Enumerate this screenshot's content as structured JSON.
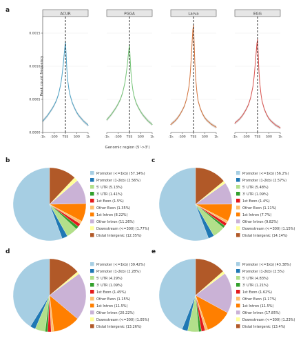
{
  "panel_labels": {
    "a": "a",
    "b": "b",
    "c": "c",
    "d": "d",
    "e": "e"
  },
  "colors": {
    "facet_lines": [
      "#4fa3c7",
      "#74c476",
      "#d4733a",
      "#d9534f"
    ],
    "facet_fill": "#bdbdbd",
    "strip_bg": "#e6e6e6",
    "pie": [
      "#a6cee3",
      "#1f78b4",
      "#b2df8a",
      "#33a02c",
      "#fb9a99",
      "#e31a1c",
      "#fdbf6f",
      "#ff7f00",
      "#cab2d6",
      "#6a3d9a",
      "#ffff99",
      "#b15928"
    ]
  },
  "chart_data": [
    {
      "type": "line",
      "panel": "a",
      "facets": [
        "ACUR",
        "PGGA",
        "Larva",
        "EGG"
      ],
      "xlabel": "Genomic region (5'->3')",
      "ylabel": "Peak count frequency",
      "xtick_labels": [
        "-1k",
        "-500",
        "TSS",
        "500",
        "1k"
      ],
      "ytick_labels": [
        "0.0000",
        "0.0005",
        "0.0010",
        "0.0015"
      ],
      "x_range": [
        -1000,
        1000
      ],
      "ylim": [
        0,
        0.00175
      ],
      "tss_line": 0,
      "x": [
        -1000,
        -900,
        -800,
        -700,
        -600,
        -500,
        -400,
        -300,
        -200,
        -150,
        -100,
        -60,
        -30,
        0,
        30,
        60,
        100,
        150,
        200,
        300,
        400,
        500,
        600,
        700,
        800,
        900,
        1000
      ],
      "series": [
        {
          "values": [
            0.00017,
            0.00021,
            0.00025,
            0.0003,
            0.00035,
            0.00041,
            0.00048,
            0.00058,
            0.00074,
            0.00086,
            0.00101,
            0.00116,
            0.00127,
            0.00137,
            0.00119,
            0.00097,
            0.00079,
            0.00066,
            0.00057,
            0.00045,
            0.00037,
            0.0003,
            0.00025,
            0.00021,
            0.00017,
            0.00014,
            0.00011
          ]
        },
        {
          "values": [
            0.00019,
            0.00023,
            0.00027,
            0.00032,
            0.00037,
            0.00043,
            0.0005,
            0.0006,
            0.00075,
            0.00087,
            0.001,
            0.00114,
            0.00124,
            0.00133,
            0.00113,
            0.00093,
            0.00077,
            0.00064,
            0.00055,
            0.00044,
            0.00037,
            0.00031,
            0.00026,
            0.00022,
            0.00018,
            0.00015,
            0.00012
          ]
        },
        {
          "values": [
            0.00012,
            0.00015,
            0.00018,
            0.00022,
            0.00027,
            0.00033,
            0.0004,
            0.00051,
            0.00069,
            0.00086,
            0.00112,
            0.00137,
            0.00155,
            0.00162,
            0.00134,
            0.00104,
            0.0008,
            0.00061,
            0.00048,
            0.00036,
            0.00028,
            0.00022,
            0.00018,
            0.00015,
            0.00012,
            0.0001,
            8e-05
          ]
        },
        {
          "values": [
            0.00014,
            0.00017,
            0.0002,
            0.00024,
            0.00029,
            0.00035,
            0.00042,
            0.00053,
            0.0007,
            0.00085,
            0.00104,
            0.00121,
            0.00134,
            0.00141,
            0.00118,
            0.00093,
            0.00074,
            0.00058,
            0.00047,
            0.00035,
            0.00027,
            0.00021,
            0.00017,
            0.00014,
            0.00011,
            9e-05,
            7e-05
          ]
        }
      ]
    },
    {
      "type": "pie",
      "panel": "b",
      "labels": [
        "Promoter (<=1kb) (57.14%)",
        "Promoter (1-2kb) (2.56%)",
        "5' UTR (5.13%)",
        "3' UTR (1.41%)",
        "1st Exon (1.5%)",
        "Other Exon (1.35%)",
        "1st Intron (8.22%)",
        "Other Intron (11.26%)",
        "Downstream (<=300) (1.77%)",
        "Distal Intergenic (12.35%)"
      ],
      "values": [
        57.14,
        2.56,
        5.13,
        1.41,
        1.5,
        1.35,
        8.22,
        11.26,
        1.77,
        12.35
      ],
      "color_index": [
        0,
        1,
        2,
        3,
        5,
        6,
        7,
        8,
        10,
        11
      ]
    },
    {
      "type": "pie",
      "panel": "c",
      "labels": [
        "Promoter (<=1kb) (56.2%)",
        "Promoter (1-2kb) (2.57%)",
        "5' UTR (5.48%)",
        "3' UTR (1.09%)",
        "1st Exon (1.4%)",
        "Other Exon (1.11%)",
        "1st Intron (7.7%)",
        "Other Intron (9.82%)",
        "Downstream (<=300) (1.15%)",
        "Distal Intergenic (14.14%)"
      ],
      "values": [
        56.2,
        2.57,
        5.48,
        1.09,
        1.4,
        1.11,
        7.7,
        9.82,
        1.15,
        14.14
      ],
      "color_index": [
        0,
        1,
        2,
        3,
        5,
        6,
        7,
        8,
        10,
        11
      ]
    },
    {
      "type": "pie",
      "panel": "d",
      "labels": [
        "Promoter (<=1kb) (39.42%)",
        "Promoter (1-2kb) (2.28%)",
        "5' UTR (4.29%)",
        "3' UTR (1.09%)",
        "1st Exon (1.45%)",
        "Other Exon (1.15%)",
        "1st Intron (11.5%)",
        "Other Intron (20.22%)",
        "Downstream (<=300) (1.05%)",
        "Distal Intergenic (13.26%)"
      ],
      "values": [
        39.42,
        2.28,
        4.29,
        1.09,
        1.45,
        1.15,
        11.5,
        20.22,
        1.05,
        13.26
      ],
      "color_index": [
        0,
        1,
        2,
        3,
        5,
        6,
        7,
        8,
        10,
        11
      ]
    },
    {
      "type": "pie",
      "panel": "e",
      "labels": [
        "Promoter (<=1kb) (43.38%)",
        "Promoter (1-2kb) (2.5%)",
        "5' UTR (4.83%)",
        "3' UTR (1.21%)",
        "1st Exon (1.62%)",
        "Other Exon (1.17%)",
        "1st Intron (11.5%)",
        "Other Intron (17.85%)",
        "Downstream (<=300) (1.23%)",
        "Distal Intergenic (13.4%)"
      ],
      "values": [
        43.38,
        2.5,
        4.83,
        1.21,
        1.62,
        1.17,
        11.5,
        17.85,
        1.23,
        13.4
      ],
      "color_index": [
        0,
        1,
        2,
        3,
        5,
        6,
        7,
        8,
        10,
        11
      ]
    }
  ]
}
